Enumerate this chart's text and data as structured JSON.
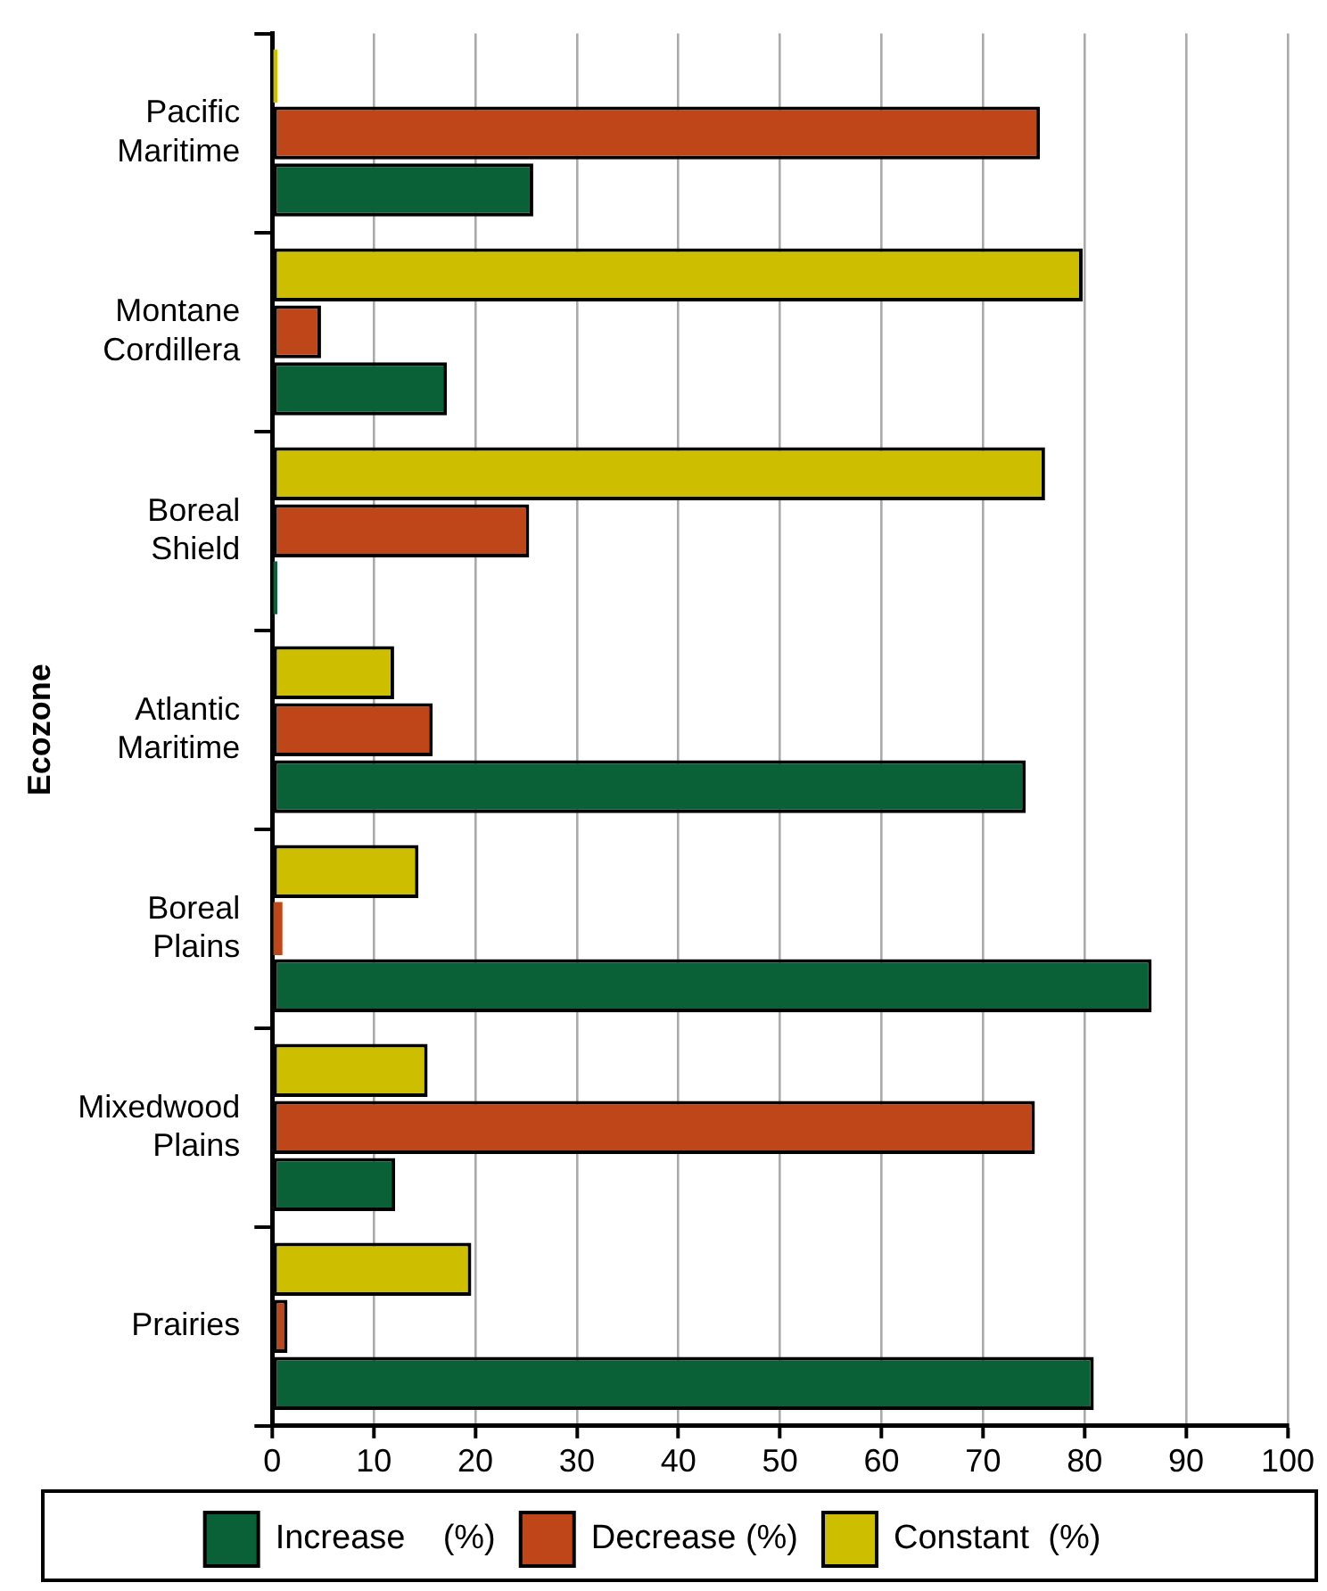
{
  "chart_data": {
    "type": "bar",
    "orientation": "horizontal",
    "ylabel": "Ecozone",
    "categories": [
      "Pacific Maritime",
      "Montane Cordillera",
      "Boreal Shield",
      "Atlantic Maritime",
      "Boreal Plains",
      "Mixedwood Plains",
      "Prairies"
    ],
    "series": [
      {
        "name": "Increase    (%)",
        "color": "#0b6137",
        "values": [
          25.7,
          17.2,
          0.5,
          74.2,
          86.6,
          12.1,
          80.9
        ]
      },
      {
        "name": "Decrease (%)",
        "color": "#bf4618",
        "values": [
          75.6,
          4.8,
          25.3,
          15.8,
          1.0,
          75.1,
          1.5
        ]
      },
      {
        "name": "Constant  (%)",
        "color": "#cdbf00",
        "values": [
          0.5,
          79.8,
          76.1,
          12.0,
          14.4,
          15.3,
          19.6
        ]
      }
    ],
    "xlim": [
      0,
      100
    ],
    "xticks": [
      0,
      10,
      20,
      30,
      40,
      50,
      60,
      70,
      80,
      90,
      100
    ],
    "grid": "x",
    "legend": "bottom"
  }
}
